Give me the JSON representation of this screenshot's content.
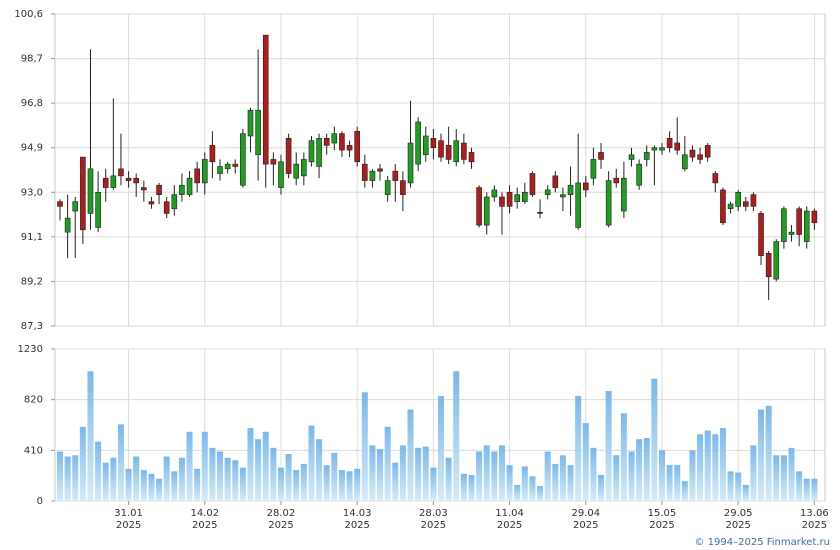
{
  "chart_data": [
    {
      "type": "candlestick",
      "categories": [
        null,
        null,
        null,
        null,
        null,
        null,
        null,
        null,
        null,
        [
          "31.01",
          "2025"
        ],
        null,
        null,
        null,
        null,
        null,
        null,
        null,
        null,
        null,
        [
          "14.02",
          "2025"
        ],
        null,
        null,
        null,
        null,
        null,
        null,
        null,
        null,
        null,
        [
          "28.02",
          "2025"
        ],
        null,
        null,
        null,
        null,
        null,
        null,
        null,
        null,
        null,
        [
          "14.03",
          "2025"
        ],
        null,
        null,
        null,
        null,
        null,
        null,
        null,
        null,
        null,
        [
          "28.03",
          "2025"
        ],
        null,
        null,
        null,
        null,
        null,
        null,
        null,
        null,
        null,
        [
          "11.04",
          "2025"
        ],
        null,
        null,
        null,
        null,
        null,
        null,
        null,
        null,
        null,
        [
          "29.04",
          "2025"
        ],
        null,
        null,
        null,
        null,
        null,
        null,
        null,
        null,
        null,
        [
          "15.05",
          "2025"
        ],
        null,
        null,
        null,
        null,
        null,
        null,
        null,
        null,
        null,
        [
          "29.05",
          "2025"
        ],
        null,
        null,
        null,
        null,
        null,
        null,
        null,
        null,
        null,
        [
          "13.06",
          "2025"
        ]
      ],
      "open": [
        92.6,
        91.3,
        92.2,
        94.5,
        92.1,
        91.5,
        93.6,
        93.2,
        94.0,
        93.6,
        93.6,
        93.2,
        92.6,
        93.3,
        92.6,
        92.3,
        92.9,
        92.9,
        94.0,
        93.4,
        95.0,
        93.8,
        94.0,
        94.2,
        93.3,
        95.4,
        94.6,
        99.7,
        94.4,
        93.2,
        95.3,
        93.6,
        93.7,
        94.3,
        94.1,
        95.3,
        95.1,
        95.5,
        95.0,
        95.6,
        94.2,
        93.5,
        94.0,
        92.9,
        93.9,
        93.5,
        93.4,
        94.2,
        94.6,
        95.3,
        95.2,
        95.0,
        94.3,
        95.1,
        94.7,
        93.2,
        91.6,
        92.8,
        92.8,
        93.0,
        92.6,
        92.6,
        93.8,
        92.15,
        92.9,
        93.7,
        92.8,
        92.9,
        91.5,
        93.4,
        93.6,
        94.7,
        91.6,
        93.6,
        92.2,
        94.4,
        93.3,
        94.4,
        94.8,
        94.8,
        95.3,
        95.1,
        94.0,
        94.8,
        94.6,
        95.0,
        93.8,
        93.1,
        92.3,
        92.4,
        92.6,
        92.9,
        92.1,
        90.4,
        89.3,
        90.9,
        91.2,
        92.3,
        90.9,
        92.2
      ],
      "high": [
        92.7,
        92.9,
        92.8,
        94.5,
        99.1,
        93.9,
        94.0,
        97.0,
        95.5,
        93.9,
        93.8,
        93.5,
        92.8,
        93.4,
        92.8,
        93.3,
        93.8,
        93.9,
        94.3,
        94.7,
        95.6,
        94.4,
        94.3,
        94.4,
        95.7,
        96.6,
        99.1,
        99.7,
        94.7,
        94.6,
        95.5,
        94.7,
        94.7,
        95.4,
        95.5,
        95.5,
        95.8,
        95.6,
        95.2,
        95.8,
        94.6,
        94.0,
        94.2,
        93.7,
        94.2,
        93.9,
        96.9,
        96.2,
        95.8,
        95.7,
        95.5,
        95.8,
        95.7,
        95.5,
        94.9,
        93.3,
        93.0,
        93.3,
        93.0,
        93.3,
        93.2,
        93.4,
        93.9,
        92.7,
        93.3,
        93.9,
        93.2,
        94.1,
        95.5,
        93.7,
        94.9,
        95.1,
        93.9,
        94.0,
        94.3,
        94.9,
        94.4,
        95.0,
        95.0,
        95.1,
        95.6,
        96.2,
        95.4,
        95.0,
        94.9,
        95.1,
        93.9,
        93.2,
        92.6,
        93.1,
        92.8,
        93.0,
        92.2,
        90.5,
        91.0,
        92.4,
        91.6,
        92.4,
        92.4,
        92.3
      ],
      "low": [
        91.8,
        90.2,
        90.2,
        90.8,
        91.4,
        91.3,
        92.6,
        93.1,
        93.3,
        93.2,
        92.8,
        92.6,
        92.3,
        92.5,
        91.9,
        92.0,
        92.6,
        92.8,
        93.0,
        92.9,
        93.6,
        93.5,
        93.8,
        93.8,
        93.2,
        94.7,
        93.5,
        93.2,
        93.3,
        92.9,
        93.6,
        93.3,
        93.3,
        94.1,
        93.6,
        94.6,
        94.8,
        94.5,
        94.5,
        94.1,
        93.2,
        93.2,
        93.5,
        92.6,
        92.6,
        92.2,
        93.2,
        93.9,
        94.3,
        94.4,
        94.3,
        94.2,
        94.1,
        94.2,
        94.0,
        91.5,
        91.2,
        92.6,
        91.2,
        92.1,
        92.3,
        92.5,
        92.8,
        91.9,
        92.7,
        93.0,
        92.2,
        92.0,
        91.4,
        92.8,
        93.3,
        94.0,
        91.5,
        93.2,
        91.9,
        94.1,
        93.1,
        94.1,
        93.3,
        94.6,
        94.7,
        94.6,
        93.9,
        94.3,
        94.2,
        94.3,
        93.0,
        91.6,
        92.1,
        92.2,
        92.2,
        92.2,
        89.9,
        88.4,
        89.2,
        90.6,
        90.9,
        90.7,
        90.6,
        91.4
      ],
      "close": [
        92.4,
        91.9,
        92.6,
        91.4,
        94.0,
        93.0,
        93.2,
        93.7,
        93.7,
        93.5,
        93.4,
        93.1,
        92.5,
        92.9,
        92.1,
        92.9,
        93.3,
        93.6,
        93.4,
        94.4,
        94.3,
        94.1,
        94.2,
        94.1,
        95.5,
        96.5,
        96.5,
        94.2,
        94.2,
        94.3,
        93.8,
        94.2,
        94.4,
        95.2,
        95.3,
        95.0,
        95.5,
        94.8,
        94.8,
        94.3,
        93.5,
        93.9,
        93.9,
        93.5,
        93.5,
        92.9,
        95.1,
        96.0,
        95.4,
        94.9,
        94.5,
        94.4,
        95.2,
        94.4,
        94.3,
        91.6,
        92.8,
        93.1,
        92.4,
        92.4,
        92.9,
        93.0,
        92.9,
        92.1,
        93.1,
        93.2,
        92.9,
        93.3,
        93.4,
        93.1,
        94.4,
        94.4,
        93.5,
        93.4,
        93.6,
        94.6,
        94.2,
        94.7,
        94.9,
        94.9,
        94.9,
        94.8,
        94.6,
        94.5,
        94.4,
        94.5,
        93.4,
        91.7,
        92.5,
        93.0,
        92.4,
        92.4,
        90.3,
        89.4,
        90.9,
        92.3,
        91.3,
        91.2,
        92.2,
        91.7
      ],
      "up_color": "#1e9e1e",
      "down_color": "#b01c1c",
      "ylim": [
        87.3,
        100.6
      ],
      "yticks": [
        {
          "value": 87.3,
          "label": "87,3"
        },
        {
          "value": 89.2,
          "label": "89,2"
        },
        {
          "value": 91.1,
          "label": "91,1"
        },
        {
          "value": 93.0,
          "label": "93,0"
        },
        {
          "value": 94.9,
          "label": "94,9"
        },
        {
          "value": 96.8,
          "label": "96,8"
        },
        {
          "value": 98.7,
          "label": "98,7"
        },
        {
          "value": 100.6,
          "label": "100,6"
        }
      ],
      "grid": true
    },
    {
      "type": "bar",
      "values": [
        400,
        360,
        370,
        600,
        1050,
        480,
        310,
        350,
        620,
        260,
        360,
        250,
        220,
        180,
        360,
        240,
        350,
        560,
        260,
        560,
        430,
        400,
        350,
        330,
        270,
        590,
        500,
        560,
        430,
        270,
        380,
        250,
        300,
        610,
        500,
        290,
        390,
        250,
        240,
        260,
        880,
        450,
        420,
        600,
        310,
        450,
        740,
        430,
        440,
        270,
        850,
        350,
        1050,
        220,
        210,
        400,
        450,
        400,
        450,
        290,
        130,
        280,
        200,
        120,
        400,
        300,
        370,
        290,
        850,
        630,
        430,
        210,
        890,
        370,
        710,
        400,
        500,
        510,
        990,
        410,
        290,
        290,
        160,
        410,
        540,
        570,
        540,
        590,
        240,
        230,
        130,
        450,
        740,
        770,
        370,
        370,
        430,
        240,
        180,
        180
      ],
      "color": "#8cc4ee",
      "ylim": [
        0,
        1230
      ],
      "yticks": [
        0,
        410,
        820,
        1230
      ],
      "grid": true
    }
  ],
  "footer": "© 1994–2025 Finmarket.ru"
}
